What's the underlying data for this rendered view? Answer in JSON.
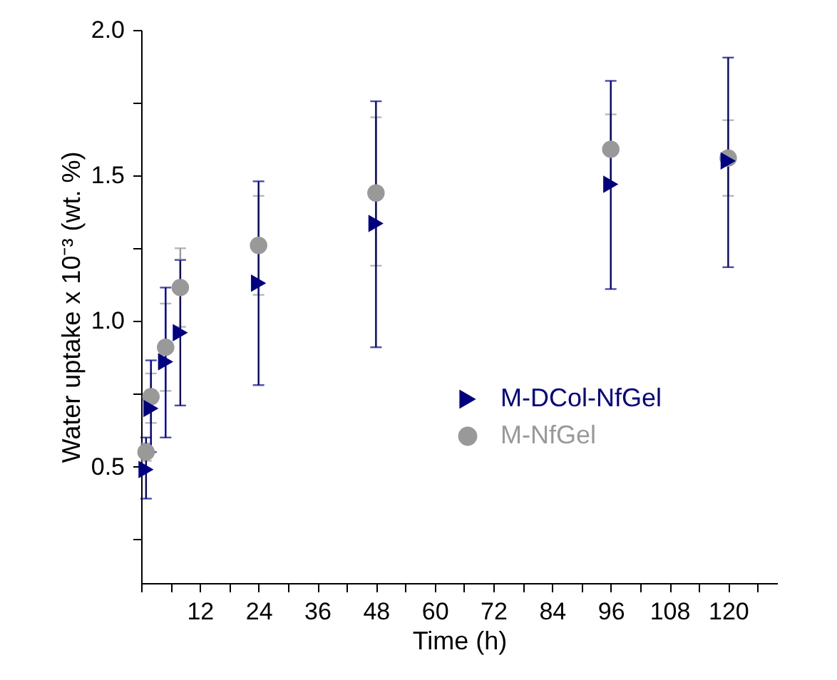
{
  "chart_data": {
    "type": "scatter",
    "xlabel": "Time (h)",
    "ylabel": "Water uptake x 10⁻³ (wt. %)",
    "xlim": [
      0,
      130
    ],
    "xticks": [
      {
        "value": 0,
        "label": null
      },
      {
        "value": 6,
        "label": null
      },
      12,
      {
        "value": 18,
        "label": null
      },
      24,
      {
        "value": 30,
        "label": null
      },
      36,
      {
        "value": 42,
        "label": null
      },
      48,
      {
        "value": 54,
        "label": null
      },
      60,
      {
        "value": 66,
        "label": null
      },
      72,
      {
        "value": 78,
        "label": null
      },
      84,
      {
        "value": 90,
        "label": null
      },
      96,
      {
        "value": 102,
        "label": null
      },
      108,
      {
        "value": 114,
        "label": null
      },
      120,
      {
        "value": 126,
        "label": null
      }
    ],
    "ylim": [
      0.1,
      2.0
    ],
    "yticks": [
      {
        "value": 0.25,
        "label": null
      },
      0.5,
      {
        "value": 0.75,
        "label": null
      },
      {
        "value": 1,
        "label": "1.0"
      },
      {
        "value": 1.25,
        "label": null
      },
      1.5,
      {
        "value": 1.75,
        "label": null
      },
      {
        "value": 2,
        "label": "2.0"
      }
    ],
    "legend": "right",
    "grid": false,
    "series": [
      {
        "name": "M-DCol-NfGel",
        "color": "#000080",
        "marker": "triangle",
        "x": [
          1,
          2,
          5,
          8,
          24,
          48,
          96,
          120
        ],
        "values": [
          0.49,
          0.7,
          0.86,
          0.96,
          1.13,
          1.335,
          1.47,
          1.55
        ],
        "errors": [
          [
            0.39,
            0.6
          ],
          [
            0.55,
            0.865
          ],
          [
            0.6,
            1.115
          ],
          [
            0.71,
            1.21
          ],
          [
            0.78,
            1.48
          ],
          [
            0.91,
            1.755
          ],
          [
            1.11,
            1.825
          ],
          [
            1.185,
            1.905
          ]
        ]
      },
      {
        "name": "M-NfGel",
        "color": "#999999",
        "marker": "circle",
        "x": [
          1,
          2,
          5,
          8,
          24,
          48,
          96,
          120
        ],
        "values": [
          0.55,
          0.74,
          0.91,
          1.115,
          1.26,
          1.44,
          1.59,
          1.56
        ],
        "errors": [
          [
            0.52,
            0.58
          ],
          [
            0.65,
            0.82
          ],
          [
            0.76,
            1.06
          ],
          [
            0.98,
            1.25
          ],
          [
            1.09,
            1.43
          ],
          [
            1.19,
            1.7
          ],
          [
            1.47,
            1.71
          ],
          [
            1.43,
            1.69
          ]
        ]
      }
    ]
  }
}
